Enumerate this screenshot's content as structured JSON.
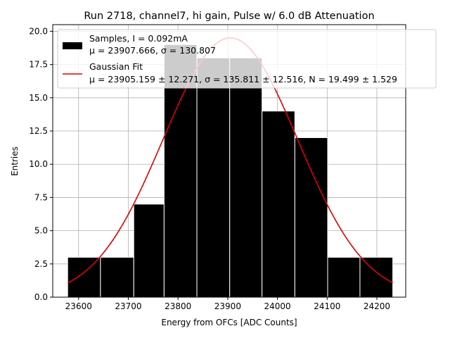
{
  "chart_data": {
    "type": "bar",
    "title": "Run 2718, channel7, hi gain, Pulse w/ 6.0 dB Attenuation",
    "xlabel": "Energy from OFCs [ADC Counts]",
    "ylabel": "Entries",
    "xlim": [
      23548,
      24258
    ],
    "ylim": [
      0,
      20.5
    ],
    "xticks": [
      {
        "value": 23600,
        "label": "23600"
      },
      {
        "value": 23700,
        "label": "23700"
      },
      {
        "value": 23800,
        "label": "23800"
      },
      {
        "value": 23900,
        "label": "23900"
      },
      {
        "value": 24000,
        "label": "24000"
      },
      {
        "value": 24100,
        "label": "24100"
      },
      {
        "value": 24200,
        "label": "24200"
      }
    ],
    "yticks": [
      {
        "value": 0,
        "label": "0.0"
      },
      {
        "value": 2.5,
        "label": "2.5"
      },
      {
        "value": 5,
        "label": "5.0"
      },
      {
        "value": 7.5,
        "label": "7.5"
      },
      {
        "value": 10,
        "label": "10.0"
      },
      {
        "value": 12.5,
        "label": "12.5"
      },
      {
        "value": 15,
        "label": "15.0"
      },
      {
        "value": 17.5,
        "label": "17.5"
      },
      {
        "value": 20,
        "label": "20.0"
      }
    ],
    "grid": true,
    "legend_position": "top-right",
    "histogram": {
      "name": "Samples, I = 0.092mA",
      "stats": "μ = 23907.666, σ = 130.807",
      "color": "#000000",
      "bins": [
        {
          "x0": 23578,
          "x1": 23644,
          "count": 3
        },
        {
          "x0": 23644,
          "x1": 23711,
          "count": 3
        },
        {
          "x0": 23711,
          "x1": 23772,
          "count": 7
        },
        {
          "x0": 23772,
          "x1": 23838,
          "count": 19
        },
        {
          "x0": 23838,
          "x1": 23904,
          "count": 18
        },
        {
          "x0": 23904,
          "x1": 23969,
          "count": 18
        },
        {
          "x0": 23969,
          "x1": 24035,
          "count": 14
        },
        {
          "x0": 24035,
          "x1": 24101,
          "count": 12
        },
        {
          "x0": 24101,
          "x1": 24166,
          "count": 3
        },
        {
          "x0": 24166,
          "x1": 24232,
          "count": 3
        }
      ]
    },
    "fit": {
      "name": "Gaussian Fit",
      "stats": "μ = 23905.159 ± 12.271, σ = 135.811 ± 12.516, N = 19.499 ± 1.529",
      "color": "#e00000",
      "mu": 23905.159,
      "sigma": 135.811,
      "N": 19.499,
      "x_range": [
        23578,
        24232
      ]
    }
  }
}
